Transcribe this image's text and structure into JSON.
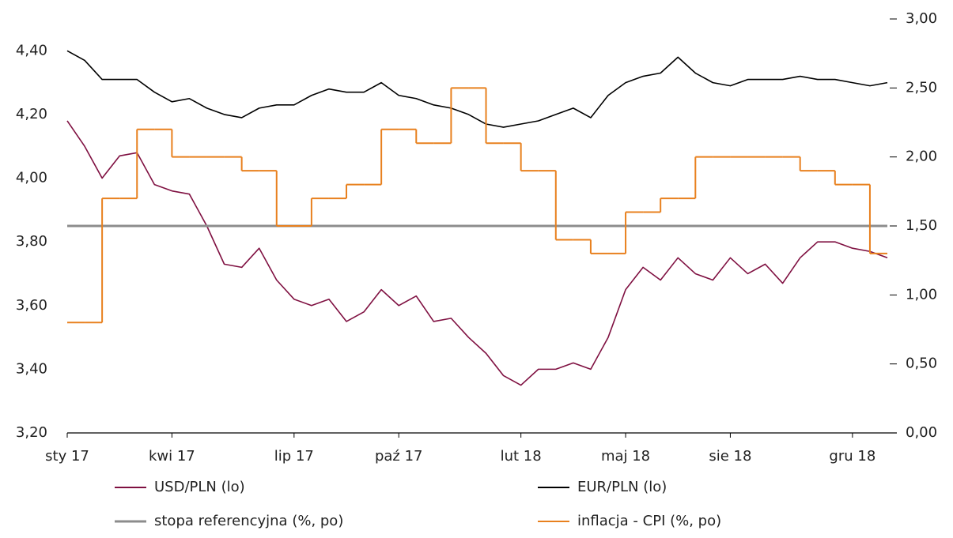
{
  "chart_data": {
    "type": "line",
    "categories": [
      "sty 17",
      null,
      null,
      null,
      null,
      null,
      "kwi 17",
      null,
      null,
      null,
      null,
      null,
      null,
      "lip 17",
      null,
      null,
      null,
      null,
      null,
      "paź 17",
      null,
      null,
      null,
      null,
      null,
      null,
      "lut 18",
      null,
      null,
      null,
      null,
      null,
      "maj 18",
      null,
      null,
      null,
      null,
      null,
      "sie 18",
      null,
      null,
      null,
      null,
      null,
      null,
      "gru 18",
      null,
      null
    ],
    "ylim": [
      3.2,
      4.5
    ],
    "yticks": [
      {
        "value": 3.2,
        "label": "3,20"
      },
      {
        "value": 3.4,
        "label": "3,40"
      },
      {
        "value": 3.6,
        "label": "3,60"
      },
      {
        "value": 3.8,
        "label": "3,80"
      },
      {
        "value": 4.0,
        "label": "4,00"
      },
      {
        "value": 4.2,
        "label": "4,20"
      },
      {
        "value": 4.4,
        "label": "4,40"
      }
    ],
    "y2lim": [
      0,
      3
    ],
    "y2ticks": [
      {
        "value": 0,
        "label": "0,00"
      },
      {
        "value": 0.5,
        "label": "0,50"
      },
      {
        "value": 1.0,
        "label": "1,00"
      },
      {
        "value": 1.5,
        "label": "1,50"
      },
      {
        "value": 2.0,
        "label": "2,00"
      },
      {
        "value": 2.5,
        "label": "2,50"
      },
      {
        "value": 3.0,
        "label": "3,00"
      }
    ],
    "series": [
      {
        "name": "USD/PLN (lo)",
        "color": "#7f1041",
        "values": [
          4.18,
          4.1,
          4.0,
          4.07,
          4.08,
          3.98,
          3.96,
          3.95,
          3.85,
          3.73,
          3.72,
          3.78,
          3.68,
          3.62,
          3.6,
          3.62,
          3.55,
          3.58,
          3.65,
          3.6,
          3.63,
          3.55,
          3.56,
          3.5,
          3.45,
          3.38,
          3.35,
          3.4,
          3.4,
          3.42,
          3.4,
          3.5,
          3.65,
          3.72,
          3.68,
          3.75,
          3.7,
          3.68,
          3.75,
          3.7,
          3.73,
          3.67,
          3.75,
          3.8,
          3.8,
          3.78,
          3.77,
          3.75
        ]
      },
      {
        "name": "EUR/PLN (lo)",
        "color": "#000000",
        "values": [
          4.4,
          4.37,
          4.31,
          4.31,
          4.31,
          4.27,
          4.24,
          4.25,
          4.22,
          4.2,
          4.19,
          4.22,
          4.23,
          4.23,
          4.26,
          4.28,
          4.27,
          4.27,
          4.3,
          4.26,
          4.25,
          4.23,
          4.22,
          4.2,
          4.17,
          4.16,
          4.17,
          4.18,
          4.2,
          4.22,
          4.19,
          4.26,
          4.3,
          4.32,
          4.33,
          4.38,
          4.33,
          4.3,
          4.29,
          4.31,
          4.31,
          4.31,
          4.32,
          4.31,
          4.31,
          4.3,
          4.29,
          4.3
        ]
      },
      {
        "name": "stopa referencyjna (%, po)",
        "color": "#8c8c8c",
        "axis": "y2",
        "values": [
          1.5,
          1.5,
          1.5,
          1.5,
          1.5,
          1.5,
          1.5,
          1.5,
          1.5,
          1.5,
          1.5,
          1.5,
          1.5,
          1.5,
          1.5,
          1.5,
          1.5,
          1.5,
          1.5,
          1.5,
          1.5,
          1.5,
          1.5,
          1.5,
          1.5,
          1.5,
          1.5,
          1.5,
          1.5,
          1.5,
          1.5,
          1.5,
          1.5,
          1.5,
          1.5,
          1.5,
          1.5,
          1.5,
          1.5,
          1.5,
          1.5,
          1.5,
          1.5,
          1.5,
          1.5,
          1.5,
          1.5,
          1.5
        ]
      },
      {
        "name": "inflacja - CPI (%, po)",
        "color": "#e8801e",
        "axis": "y2",
        "step": true,
        "values": [
          0.8,
          0.8,
          1.7,
          1.7,
          2.2,
          2.2,
          2.0,
          2.0,
          2.0,
          2.0,
          1.9,
          1.9,
          1.5,
          1.5,
          1.7,
          1.7,
          1.8,
          1.8,
          2.2,
          2.2,
          2.1,
          2.1,
          2.5,
          2.5,
          2.1,
          2.1,
          1.9,
          1.9,
          1.4,
          1.4,
          1.3,
          1.3,
          1.6,
          1.6,
          1.7,
          1.7,
          2.0,
          2.0,
          2.0,
          2.0,
          2.0,
          2.0,
          1.9,
          1.9,
          1.8,
          1.8,
          1.3,
          1.3
        ]
      }
    ]
  }
}
